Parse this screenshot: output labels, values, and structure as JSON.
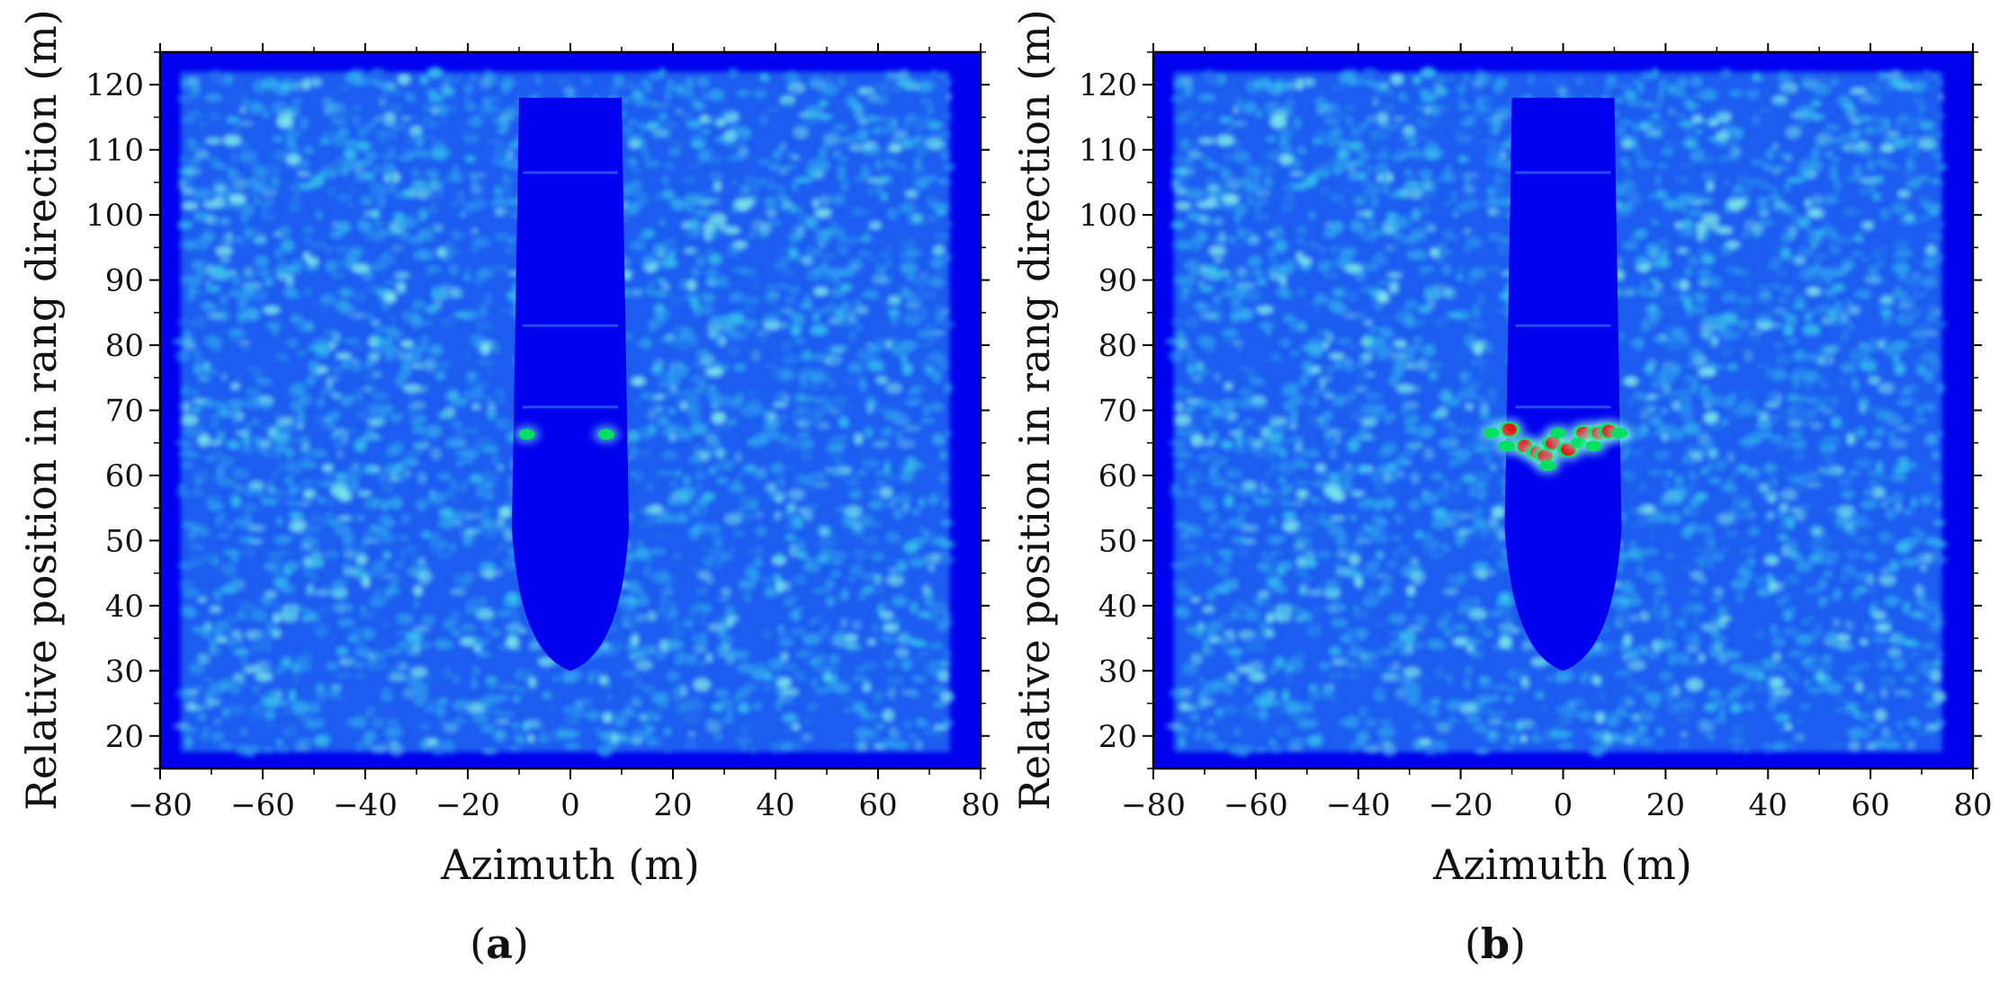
{
  "colors": {
    "background": "#0000ee",
    "speckle_low": "#1c5cf0",
    "speckle_mid": "#2f9ff0",
    "speckle_high": "#7ff0e8",
    "target_green": "#00e060",
    "target_red": "#ee1111"
  },
  "chart_data": [
    {
      "type": "heatmap",
      "panel_label": "a",
      "xlabel": "Azimuth (m)",
      "ylabel": "Relative position in rang direction (m)",
      "xlim": [
        -80,
        80
      ],
      "ylim": [
        15,
        125
      ],
      "x_ticks": [
        -80,
        -60,
        -40,
        -20,
        0,
        20,
        40,
        60,
        80
      ],
      "x_tick_labels": [
        "−80",
        "−60",
        "−40",
        "−20",
        "0",
        "20",
        "40",
        "60",
        "80"
      ],
      "y_ticks": [
        20,
        30,
        40,
        50,
        60,
        70,
        80,
        90,
        100,
        110,
        120
      ],
      "y_tick_labels": [
        "20",
        "30",
        "40",
        "50",
        "60",
        "70",
        "80",
        "90",
        "100",
        "110",
        "120"
      ],
      "grid": false,
      "shadow_region": {
        "x_left": -10,
        "x_right": 10,
        "y_bottom": 30,
        "y_top": 118
      },
      "bright_points": [
        {
          "x": -8.5,
          "y": 66.3,
          "level": "green"
        },
        {
          "x": 7,
          "y": 66.3,
          "level": "green"
        }
      ]
    },
    {
      "type": "heatmap",
      "panel_label": "b",
      "xlabel": "Azimuth (m)",
      "ylabel": "Relative position in rang direction (m)",
      "xlim": [
        -80,
        80
      ],
      "ylim": [
        15,
        125
      ],
      "x_ticks": [
        -80,
        -60,
        -40,
        -20,
        0,
        20,
        40,
        60,
        80
      ],
      "x_tick_labels": [
        "−80",
        "−60",
        "−40",
        "−20",
        "0",
        "20",
        "40",
        "60",
        "80"
      ],
      "y_ticks": [
        20,
        30,
        40,
        50,
        60,
        70,
        80,
        90,
        100,
        110,
        120
      ],
      "y_tick_labels": [
        "20",
        "30",
        "40",
        "50",
        "60",
        "70",
        "80",
        "90",
        "100",
        "110",
        "120"
      ],
      "grid": false,
      "shadow_region": {
        "x_left": -10,
        "x_right": 10,
        "y_bottom": 30,
        "y_top": 118
      },
      "bright_points": [
        {
          "x": -10.5,
          "y": 67,
          "level": "red"
        },
        {
          "x": -7.5,
          "y": 64.5,
          "level": "red"
        },
        {
          "x": -5,
          "y": 63.5,
          "level": "red"
        },
        {
          "x": -3.5,
          "y": 63,
          "level": "red"
        },
        {
          "x": -2,
          "y": 65,
          "level": "red"
        },
        {
          "x": 1,
          "y": 64,
          "level": "red"
        },
        {
          "x": 4,
          "y": 66.5,
          "level": "red"
        },
        {
          "x": 7,
          "y": 66.5,
          "level": "red"
        },
        {
          "x": 9,
          "y": 66.8,
          "level": "red"
        },
        {
          "x": -14,
          "y": 66.5,
          "level": "green"
        },
        {
          "x": -11,
          "y": 64.5,
          "level": "green"
        },
        {
          "x": -3,
          "y": 61.5,
          "level": "green"
        },
        {
          "x": 3,
          "y": 65,
          "level": "green"
        },
        {
          "x": 6,
          "y": 64.5,
          "level": "green"
        },
        {
          "x": 11,
          "y": 66.5,
          "level": "green"
        },
        {
          "x": -1,
          "y": 66.5,
          "level": "green"
        }
      ]
    }
  ]
}
